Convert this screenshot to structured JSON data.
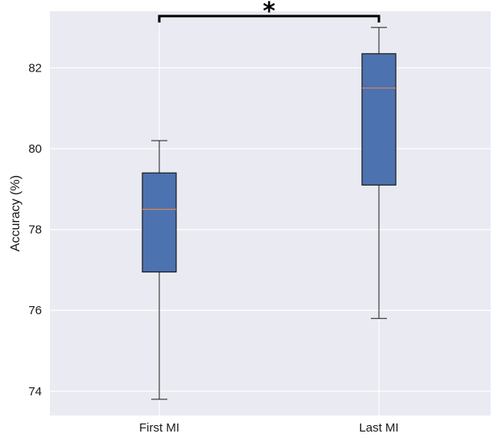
{
  "chart_data": {
    "type": "box",
    "title": "",
    "xlabel": "",
    "ylabel": "Accuracy (%)",
    "ylim": [
      73.4,
      83.4
    ],
    "yticks": [
      74,
      76,
      78,
      80,
      82
    ],
    "grid": true,
    "categories": [
      "First MI",
      "Last MI"
    ],
    "boxes": [
      {
        "category": "First MI",
        "whisker_low": 73.8,
        "q1": 76.95,
        "median": 78.5,
        "q3": 79.4,
        "whisker_high": 80.2
      },
      {
        "category": "Last MI",
        "whisker_low": 75.8,
        "q1": 79.1,
        "median": 81.5,
        "q3": 82.35,
        "whisker_high": 83.0
      }
    ],
    "annotations": [
      {
        "type": "significance-bracket",
        "between": [
          "First MI",
          "Last MI"
        ],
        "label": "*"
      }
    ],
    "colors": {
      "plot_background": "#eaeaf2",
      "grid": "#ffffff",
      "box_fill": "#4c72b0",
      "box_edge": "#1a1a1a",
      "median": "#dd8452",
      "whisker": "#1a1a1a",
      "bracket": "#000000"
    }
  }
}
